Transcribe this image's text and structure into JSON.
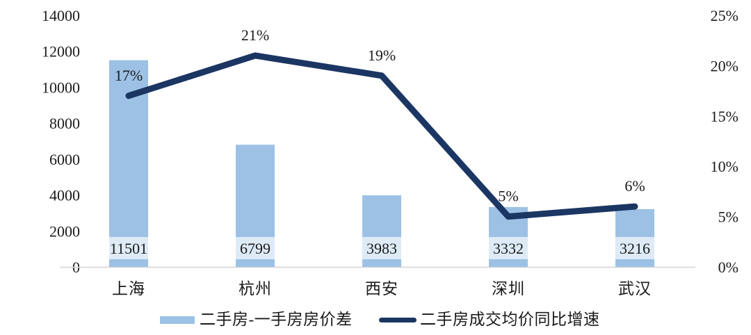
{
  "chart_data": {
    "type": "combo-bar-line",
    "title": "",
    "categories": [
      "上海",
      "杭州",
      "西安",
      "深圳",
      "武汉"
    ],
    "series": [
      {
        "name": "二手房-一手房房价差",
        "type": "bar",
        "axis": "left",
        "values": [
          11501,
          6799,
          3983,
          3332,
          3216
        ],
        "data_labels": [
          "11501",
          "6799",
          "3983",
          "3332",
          "3216"
        ],
        "color": "#9CC1E4",
        "data_label_bg": "#DEEBF7"
      },
      {
        "name": "二手房成交均价同比增速",
        "type": "line",
        "axis": "right",
        "values": [
          17,
          21,
          19,
          5,
          6
        ],
        "data_labels": [
          "17%",
          "21%",
          "19%",
          "5%",
          "6%"
        ],
        "color": "#1B3663"
      }
    ],
    "left_axis": {
      "min": 0,
      "max": 14000,
      "step": 2000,
      "tick_labels": [
        "14000",
        "12000",
        "10000",
        "8000",
        "6000",
        "4000",
        "2000",
        "0"
      ]
    },
    "right_axis": {
      "min": 0,
      "max": 25,
      "step": 5,
      "unit": "%",
      "tick_labels": [
        "25%",
        "20%",
        "15%",
        "10%",
        "5%",
        "0%"
      ]
    },
    "legend": {
      "position": "bottom",
      "items": [
        "二手房-一手房房价差",
        "二手房成交均价同比增速"
      ]
    },
    "grid": false,
    "axis_line_color": "#D9D9D9",
    "text_color": "#1A1A1A",
    "background": "#FFFFFF"
  }
}
